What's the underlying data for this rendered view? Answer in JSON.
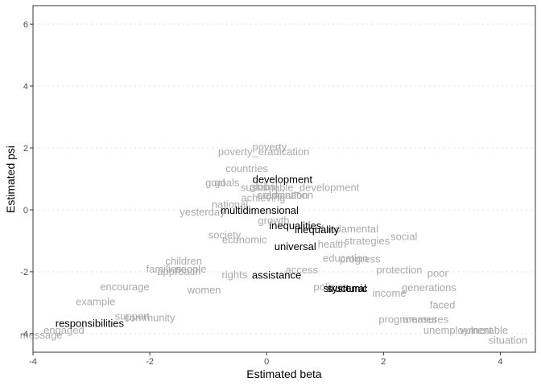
{
  "chart_data": {
    "type": "scatter",
    "title": "",
    "xlabel": "Estimated beta",
    "ylabel": "Estimated psi",
    "xlim": [
      -4.0,
      4.6
    ],
    "ylim": [
      -4.6,
      6.6
    ],
    "x_ticks": [
      -4,
      -2,
      0,
      2,
      4
    ],
    "y_ticks": [
      -4,
      -2,
      0,
      2,
      4,
      6
    ],
    "x_tick_labels": [
      "-4",
      "-2",
      "0",
      "2",
      "4"
    ],
    "y_tick_labels": [
      "-4",
      "-2",
      "0",
      "2",
      "4",
      "6"
    ],
    "grid": "horizontal major dotted",
    "colors": {
      "highlight": "#000000",
      "muted": "#aaaaaa",
      "axis": "#333333",
      "grid": "#e0e0e0"
    },
    "highlighted": [
      {
        "label": "development",
        "x": 0.27,
        "y": 0.98
      },
      {
        "label": "multidimensional",
        "x": -0.12,
        "y": -0.02
      },
      {
        "label": "inequalities",
        "x": 0.49,
        "y": -0.52
      },
      {
        "label": "inequality",
        "x": 0.86,
        "y": -0.65
      },
      {
        "label": "universal",
        "x": 0.49,
        "y": -1.2
      },
      {
        "label": "assistance",
        "x": 0.17,
        "y": -2.12
      },
      {
        "label": "systemic",
        "x": 1.38,
        "y": -2.55
      },
      {
        "label": "structural",
        "x": 1.34,
        "y": -2.55
      },
      {
        "label": "responsibilities",
        "x": -3.03,
        "y": -3.68
      }
    ],
    "words": [
      {
        "label": "poverty",
        "x": 0.05,
        "y": 2.03
      },
      {
        "label": "poverty_eradication",
        "x": -0.05,
        "y": 1.87
      },
      {
        "label": "countries",
        "x": -0.34,
        "y": 1.33
      },
      {
        "label": "goals",
        "x": -0.68,
        "y": 0.87
      },
      {
        "label": "goal",
        "x": -0.88,
        "y": 0.87
      },
      {
        "label": "sustainable_development",
        "x": 0.57,
        "y": 0.72
      },
      {
        "label": "global",
        "x": -0.05,
        "y": 0.74
      },
      {
        "label": "elimination",
        "x": 0.37,
        "y": 0.47
      },
      {
        "label": "eradication",
        "x": 0.27,
        "y": 0.47
      },
      {
        "label": "achieving",
        "x": -0.06,
        "y": 0.38
      },
      {
        "label": "national",
        "x": -0.63,
        "y": 0.17
      },
      {
        "label": "yesterday",
        "x": -1.1,
        "y": -0.08
      },
      {
        "label": "social",
        "x": 2.35,
        "y": -0.87
      },
      {
        "label": "poor",
        "x": 2.93,
        "y": -2.05
      },
      {
        "label": "protection",
        "x": 2.27,
        "y": -1.95
      },
      {
        "label": "generations",
        "x": 2.78,
        "y": -2.52
      },
      {
        "label": "faced",
        "x": 3.01,
        "y": -3.08
      },
      {
        "label": "situation",
        "x": 4.13,
        "y": -4.22
      },
      {
        "label": "vulnerable",
        "x": 3.72,
        "y": -3.9
      },
      {
        "label": "unemployment",
        "x": 3.27,
        "y": -3.9
      },
      {
        "label": "example",
        "x": -2.93,
        "y": -2.97
      },
      {
        "label": "message",
        "x": -3.86,
        "y": -4.06
      },
      {
        "label": "engaged",
        "x": -3.47,
        "y": -3.9
      },
      {
        "label": "encourage",
        "x": -2.43,
        "y": -2.5
      },
      {
        "label": "women",
        "x": -1.07,
        "y": -2.6
      },
      {
        "label": "society",
        "x": -0.72,
        "y": -0.82
      },
      {
        "label": "economic",
        "x": -0.38,
        "y": -0.98
      },
      {
        "label": "growth",
        "x": 0.12,
        "y": -0.35
      },
      {
        "label": "health",
        "x": 1.12,
        "y": -1.12
      },
      {
        "label": "education",
        "x": 1.35,
        "y": -1.57
      },
      {
        "label": "strategies",
        "x": 1.72,
        "y": -1.02
      },
      {
        "label": "fundamental",
        "x": 1.42,
        "y": -0.62
      },
      {
        "label": "progress",
        "x": 1.6,
        "y": -1.6
      },
      {
        "label": "people",
        "x": -1.3,
        "y": -1.92
      },
      {
        "label": "families",
        "x": -1.76,
        "y": -1.92
      },
      {
        "label": "children",
        "x": -1.42,
        "y": -1.67
      },
      {
        "label": "community",
        "x": -2.0,
        "y": -3.5
      },
      {
        "label": "support",
        "x": -2.3,
        "y": -3.45
      },
      {
        "label": "programmes",
        "x": 2.42,
        "y": -3.55
      },
      {
        "label": "measures",
        "x": 2.72,
        "y": -3.55
      },
      {
        "label": "policies",
        "x": 1.1,
        "y": -2.5
      },
      {
        "label": "approach",
        "x": -1.5,
        "y": -2.0
      },
      {
        "label": "access",
        "x": 0.6,
        "y": -1.95
      },
      {
        "label": "rights",
        "x": -0.55,
        "y": -2.1
      },
      {
        "label": "income",
        "x": 2.1,
        "y": -2.7
      }
    ]
  }
}
